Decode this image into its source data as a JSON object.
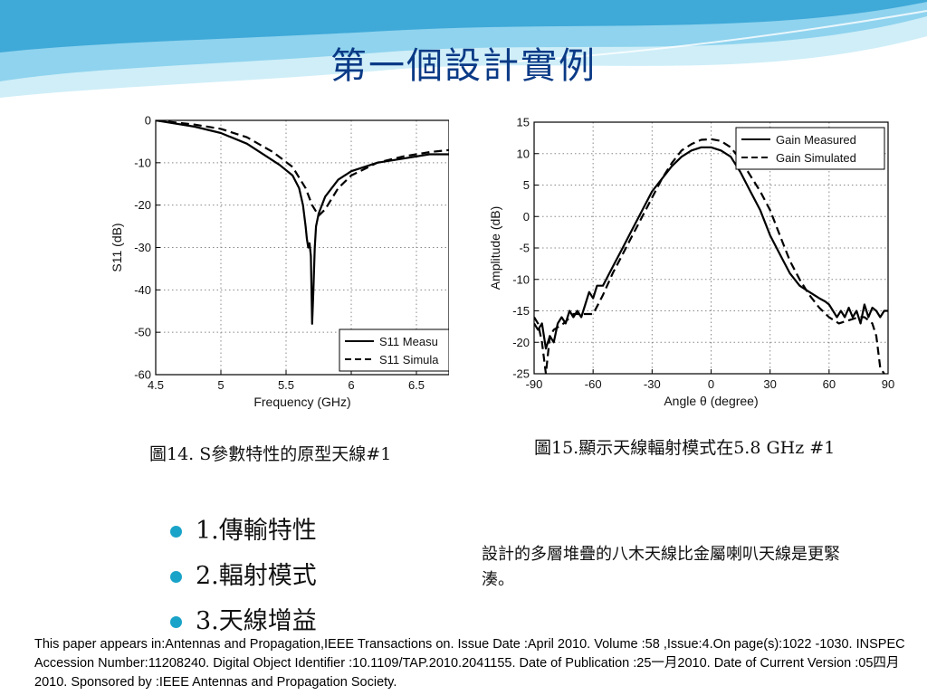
{
  "slide": {
    "title": "第一個設計實例",
    "caption_fig14": "圖14. S參數特性的原型天線#1",
    "caption_fig15": "圖15.顯示天線輻射模式在5.8 GHz #1",
    "bullets": [
      "1.傳輸特性",
      "2.輻射模式",
      "3.天線增益"
    ],
    "note": "設計的多層堆疊的八木天線比金屬喇叭天線是更緊湊。",
    "footer": "This paper appears in:Antennas and Propagation,IEEE Transactions on. Issue Date :April 2010. Volume :58 ,Issue:4.On page(s):1022 -1030. INSPEC Accession Number:11208240. Digital Object Identifier :10.1109/TAP.2010.2041155. Date of Publication :25一月2010. Date of Current Version :05四月2010. Sponsored by :IEEE Antennas and Propagation Society.",
    "colors": {
      "title": "#0b3a86",
      "bullet": "#1aa3c8",
      "wave_light": "#cfeef8",
      "wave_mid": "#8fd3ee",
      "wave_dark": "#3fa9d8"
    }
  },
  "chart_data": [
    {
      "type": "line",
      "xlabel": "Frequency (GHz)",
      "ylabel": "S11 (dB)",
      "xlim": [
        4.5,
        6.75
      ],
      "ylim": [
        -60,
        0
      ],
      "xticks": [
        "4.5",
        "5",
        "5.5",
        "6",
        "6.5"
      ],
      "yticks": [
        "0",
        "-10",
        "-20",
        "-30",
        "-40",
        "-50",
        "-60"
      ],
      "grid": "dotted",
      "legend": "bottom-right",
      "series": [
        {
          "name": "S11 Measu",
          "style": "solid",
          "x": [
            4.5,
            4.8,
            5.0,
            5.2,
            5.35,
            5.45,
            5.55,
            5.6,
            5.63,
            5.65,
            5.66,
            5.67,
            5.68,
            5.69,
            5.7,
            5.71,
            5.72,
            5.73,
            5.75,
            5.8,
            5.9,
            6.0,
            6.2,
            6.4,
            6.6,
            6.75
          ],
          "y": [
            0,
            -1.5,
            -3,
            -5.5,
            -8.5,
            -10.5,
            -13,
            -16,
            -20,
            -25,
            -28,
            -30,
            -29,
            -32,
            -48,
            -40,
            -30,
            -25,
            -22,
            -18,
            -14,
            -12,
            -10,
            -9,
            -8,
            -8
          ]
        },
        {
          "name": "S11 Simula",
          "style": "dashed",
          "x": [
            4.5,
            4.8,
            5.0,
            5.2,
            5.4,
            5.55,
            5.65,
            5.7,
            5.75,
            5.8,
            5.9,
            6.0,
            6.2,
            6.4,
            6.6,
            6.75
          ],
          "y": [
            0,
            -1,
            -2,
            -4,
            -7.5,
            -11,
            -16,
            -20,
            -22.5,
            -21,
            -16,
            -13,
            -10,
            -8.5,
            -7.5,
            -7
          ]
        }
      ]
    },
    {
      "type": "line",
      "xlabel": "Angle θ (degree)",
      "ylabel": "Amplitude (dB)",
      "xlim": [
        -90,
        90
      ],
      "ylim": [
        -25,
        15
      ],
      "xticks": [
        "-90",
        "-60",
        "-30",
        "0",
        "30",
        "60",
        "90"
      ],
      "yticks": [
        "15",
        "10",
        "5",
        "0",
        "-5",
        "-10",
        "-15",
        "-20",
        "-25"
      ],
      "grid": "dotted",
      "legend": "top-right",
      "series": [
        {
          "name": "Gain Measured",
          "style": "solid",
          "x": [
            -90,
            -88,
            -86,
            -84,
            -82,
            -80,
            -78,
            -76,
            -74,
            -72,
            -70,
            -68,
            -66,
            -64,
            -62,
            -60,
            -58,
            -55,
            -50,
            -45,
            -40,
            -35,
            -30,
            -25,
            -20,
            -15,
            -10,
            -5,
            0,
            5,
            10,
            15,
            20,
            25,
            30,
            35,
            40,
            45,
            50,
            55,
            58,
            60,
            62,
            64,
            66,
            68,
            70,
            72,
            74,
            76,
            78,
            80,
            82,
            84,
            86,
            88,
            90
          ],
          "y": [
            -17,
            -18,
            -17,
            -21,
            -19,
            -20,
            -17,
            -16,
            -17,
            -15,
            -16,
            -15,
            -16,
            -14,
            -12,
            -13,
            -11,
            -11,
            -8,
            -5,
            -2,
            1,
            4,
            6,
            8,
            9.5,
            10.5,
            11,
            11,
            10.5,
            9.5,
            7,
            4,
            1,
            -3,
            -6,
            -9,
            -11,
            -12,
            -13,
            -13.5,
            -14,
            -15,
            -16,
            -15,
            -16,
            -14.5,
            -16,
            -15,
            -17,
            -14,
            -16,
            -14.5,
            -15,
            -16,
            -15,
            -15
          ]
        },
        {
          "name": "Gain Simulated",
          "style": "dashed",
          "x": [
            -90,
            -88,
            -86,
            -84,
            -82,
            -80,
            -75,
            -70,
            -65,
            -60,
            -55,
            -50,
            -45,
            -40,
            -35,
            -30,
            -25,
            -20,
            -15,
            -10,
            -5,
            0,
            5,
            10,
            15,
            20,
            25,
            30,
            35,
            40,
            45,
            50,
            55,
            60,
            65,
            70,
            75,
            78,
            80,
            82,
            84,
            86,
            88
          ],
          "y": [
            -16,
            -17,
            -20,
            -25,
            -19,
            -18,
            -17,
            -15.5,
            -15.5,
            -15.5,
            -12.5,
            -9,
            -6,
            -3,
            0,
            3,
            6,
            8.5,
            10.5,
            11.5,
            12.2,
            12.3,
            12,
            11,
            9,
            6.5,
            4,
            1,
            -3,
            -7,
            -10,
            -12.5,
            -14.5,
            -16,
            -17,
            -16.5,
            -16,
            -16,
            -16.5,
            -17,
            -19,
            -24,
            -25
          ]
        }
      ]
    }
  ]
}
